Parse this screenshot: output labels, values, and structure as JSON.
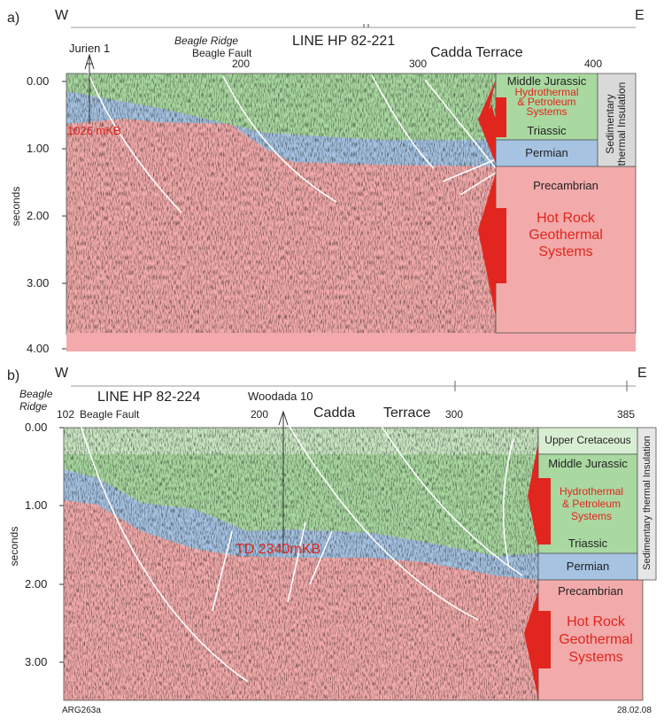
{
  "panel_a": {
    "label": "a)",
    "west": "W",
    "east": "E",
    "line_name": "LINE HP 82-221",
    "well": "Jurien 1",
    "ridge": "Beagle Ridge",
    "fault": "Beagle Fault",
    "terrace": "Cadda Terrace",
    "cdp_ticks": [
      "200",
      "300",
      "400"
    ],
    "y_ticks": [
      "0.00",
      "1.00",
      "2.00",
      "3.00",
      "4.00"
    ],
    "y_label": "seconds",
    "depth_label": "1026 mKB",
    "column": {
      "middle_jurassic": "Middle Jurassic",
      "hydro_1": "Hydrothermal",
      "hydro_2": "& Petroleum",
      "hydro_3": "Systems",
      "triassic": "Triassic",
      "permian": "Permian",
      "precambrian": "Precambrian",
      "hot_1": "Hot Rock",
      "hot_2": "Geothermal",
      "hot_3": "Systems",
      "insulation_1": "Sedimentary",
      "insulation_2": "thermal Insulation"
    }
  },
  "panel_b": {
    "label": "b)",
    "west": "W",
    "east": "E",
    "line_name": "LINE HP 82-224",
    "well": "Woodada 10",
    "ridge_1": "Beagle",
    "ridge_2": "Ridge",
    "fault": "Beagle Fault",
    "terrace_1": "Cadda",
    "terrace_2": "Terrace",
    "cdp_ticks": [
      "102",
      "200",
      "300",
      "385"
    ],
    "y_ticks": [
      "0.00",
      "1.00",
      "2.00",
      "3.00"
    ],
    "y_label": "seconds",
    "depth_label": "TD 2340mKB",
    "column": {
      "upper_cretaceous": "Upper Cretaceous",
      "middle_jurassic": "Middle Jurassic",
      "hydro_1": "Hydrothermal",
      "hydro_2": "& Petroleum",
      "hydro_3": "Systems",
      "triassic": "Triassic",
      "permian": "Permian",
      "precambrian": "Precambrian",
      "hot_1": "Hot Rock",
      "hot_2": "Geothermal",
      "hot_3": "Systems",
      "insulation": "Sedimentary thermal Insulation"
    }
  },
  "footer": {
    "figure_id": "ARG263a",
    "date": "28.02.08"
  },
  "colors": {
    "green": "#a9d8a0",
    "blue": "#a6c3e2",
    "pink": "#f2aaaa",
    "pale_green": "#d8eed2",
    "grey": "#d9d9d9",
    "red": "#e0261e"
  }
}
